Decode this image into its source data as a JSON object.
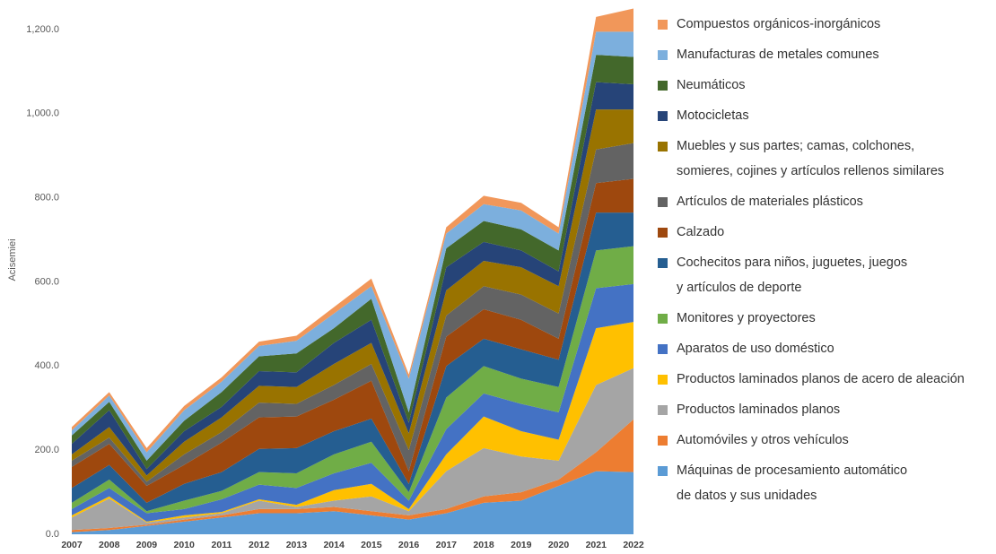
{
  "chart_data": {
    "type": "stacked_area",
    "y_label": "Acisemiei",
    "categories": [
      "2007",
      "2008",
      "2009",
      "2010",
      "2011",
      "2012",
      "2013",
      "2014",
      "2015",
      "2016",
      "2017",
      "2018",
      "2019",
      "2020",
      "2021",
      "2022"
    ],
    "ylim": [
      0,
      1200
    ],
    "yticks": [
      {
        "value": 0,
        "label": "0.0"
      },
      {
        "value": 200,
        "label": "200.0"
      },
      {
        "value": 400,
        "label": "400.0"
      },
      {
        "value": 600,
        "label": "600.0"
      },
      {
        "value": 800,
        "label": "800.0"
      },
      {
        "value": 1000,
        "label": "1,000.0"
      },
      {
        "value": 1200,
        "label": "1,200.0"
      }
    ],
    "grid": false,
    "legend": "right",
    "series": [
      {
        "name": "Máquinas de procesamiento automático\nde datos y sus unidades",
        "color": "#5b9bd5",
        "values": [
          5,
          10,
          20,
          30,
          40,
          50,
          50,
          55,
          45,
          35,
          50,
          75,
          80,
          115,
          150,
          148
        ]
      },
      {
        "name": "Automóviles y otros vehículos",
        "color": "#ed7d31",
        "values": [
          5,
          5,
          3,
          5,
          5,
          10,
          10,
          10,
          10,
          10,
          10,
          15,
          20,
          15,
          45,
          125
        ]
      },
      {
        "name": "Productos laminados planos",
        "color": "#a5a5a5",
        "values": [
          30,
          70,
          5,
          5,
          5,
          20,
          5,
          15,
          35,
          10,
          90,
          115,
          85,
          45,
          160,
          122
        ]
      },
      {
        "name": "Productos laminados planos de acero de aleación",
        "color": "#ffc000",
        "values": [
          5,
          5,
          2,
          5,
          3,
          3,
          5,
          25,
          30,
          5,
          40,
          75,
          60,
          50,
          135,
          110
        ]
      },
      {
        "name": "Aparatos de uso doméstico",
        "color": "#4472c4",
        "values": [
          15,
          20,
          20,
          15,
          30,
          35,
          40,
          40,
          50,
          20,
          60,
          55,
          65,
          65,
          95,
          90
        ]
      },
      {
        "name": "Monitores y proyectores",
        "color": "#70ad47",
        "values": [
          15,
          20,
          5,
          20,
          20,
          30,
          35,
          45,
          50,
          20,
          75,
          65,
          60,
          60,
          90,
          90
        ]
      },
      {
        "name": "Cochecitos para niños, juguetes, juegos\ny artículos de deporte",
        "color": "#255e91",
        "values": [
          35,
          35,
          20,
          40,
          45,
          55,
          60,
          55,
          55,
          20,
          75,
          65,
          70,
          65,
          90,
          80
        ]
      },
      {
        "name": "Calzado",
        "color": "#9e480e",
        "values": [
          50,
          50,
          40,
          45,
          70,
          75,
          75,
          75,
          90,
          30,
          70,
          70,
          70,
          50,
          70,
          80
        ]
      },
      {
        "name": "Artículos de materiales plásticos",
        "color": "#636363",
        "values": [
          15,
          15,
          10,
          25,
          25,
          35,
          30,
          35,
          40,
          50,
          50,
          55,
          60,
          60,
          80,
          85
        ]
      },
      {
        "name": "Muebles y sus partes; camas, colchones,\nsomieres, cojines y artículos rellenos similares",
        "color": "#997300",
        "values": [
          15,
          25,
          15,
          30,
          35,
          40,
          40,
          50,
          50,
          40,
          60,
          60,
          65,
          65,
          95,
          80
        ]
      },
      {
        "name": "Motocicletas",
        "color": "#264478",
        "values": [
          25,
          40,
          15,
          25,
          25,
          35,
          35,
          50,
          55,
          25,
          55,
          45,
          40,
          35,
          65,
          60
        ]
      },
      {
        "name": "Neumáticos",
        "color": "#43682b",
        "values": [
          20,
          20,
          20,
          25,
          35,
          35,
          45,
          35,
          50,
          25,
          45,
          50,
          50,
          50,
          65,
          65
        ]
      },
      {
        "name": "Manufacturas de metales comunes",
        "color": "#7cafdd",
        "values": [
          12,
          15,
          20,
          25,
          25,
          25,
          30,
          35,
          30,
          80,
          35,
          40,
          45,
          40,
          55,
          60
        ]
      },
      {
        "name": "Compuestos orgánicos-inorgánicos",
        "color": "#f1975a",
        "values": [
          8,
          8,
          10,
          10,
          10,
          10,
          12,
          15,
          18,
          10,
          15,
          20,
          18,
          15,
          35,
          55
        ]
      }
    ]
  }
}
